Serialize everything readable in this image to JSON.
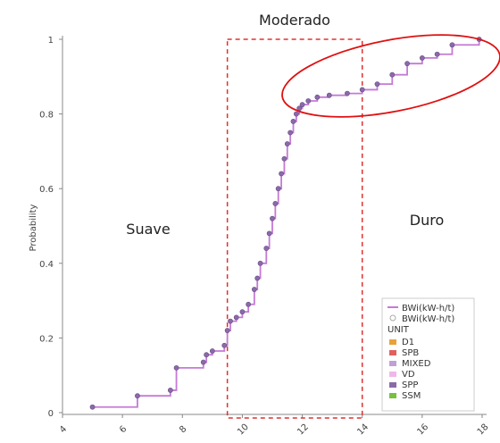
{
  "chart_data": {
    "type": "line",
    "title": "",
    "xlabel": "",
    "ylabel": "Probability",
    "xlim": [
      4,
      18
    ],
    "ylim": [
      0,
      1
    ],
    "x_ticks": [
      "4",
      "6",
      "8",
      "10",
      "12",
      "14",
      "16",
      "18"
    ],
    "y_ticks": [
      "0",
      "0.2",
      "0.4",
      "0.6",
      "0.8",
      "1"
    ],
    "series": [
      {
        "name": "BWi(kW-h/t)",
        "color": "#c47ad6",
        "x": [
          5.0,
          6.5,
          7.6,
          7.8,
          8.7,
          8.8,
          9.0,
          9.4,
          9.5,
          9.6,
          9.8,
          10.0,
          10.2,
          10.4,
          10.5,
          10.6,
          10.8,
          10.9,
          11.0,
          11.1,
          11.2,
          11.3,
          11.4,
          11.5,
          11.6,
          11.7,
          11.8,
          11.9,
          12.0,
          12.2,
          12.5,
          12.9,
          13.5,
          14.0,
          14.5,
          15.0,
          15.5,
          16.0,
          16.5,
          17.0,
          17.9
        ],
        "y": [
          0.015,
          0.045,
          0.06,
          0.12,
          0.135,
          0.155,
          0.165,
          0.18,
          0.22,
          0.245,
          0.255,
          0.27,
          0.29,
          0.33,
          0.36,
          0.4,
          0.44,
          0.48,
          0.52,
          0.56,
          0.6,
          0.64,
          0.68,
          0.72,
          0.75,
          0.78,
          0.8,
          0.815,
          0.825,
          0.835,
          0.845,
          0.85,
          0.855,
          0.865,
          0.88,
          0.905,
          0.935,
          0.95,
          0.96,
          0.985,
          1.0
        ]
      }
    ],
    "regions": {
      "left_label": "Suave",
      "middle_label": "Moderado",
      "right_label": "Duro",
      "moderate_x_range": [
        9.5,
        14.0
      ]
    },
    "legend": {
      "placement": "bottom-right",
      "line_label": "BWi(kW-h/t)",
      "marker_label": "BWi(kW-h/t)",
      "group_title": "UNIT",
      "items": [
        {
          "label": "D1",
          "color": "#e8a23a"
        },
        {
          "label": "SPB",
          "color": "#e06060"
        },
        {
          "label": "MIXED",
          "color": "#c0a0d8"
        },
        {
          "label": "VD",
          "color": "#f0b8e8"
        },
        {
          "label": "SPP",
          "color": "#8a6aa8"
        },
        {
          "label": "SSM",
          "color": "#78c040"
        }
      ]
    },
    "grid": false
  }
}
